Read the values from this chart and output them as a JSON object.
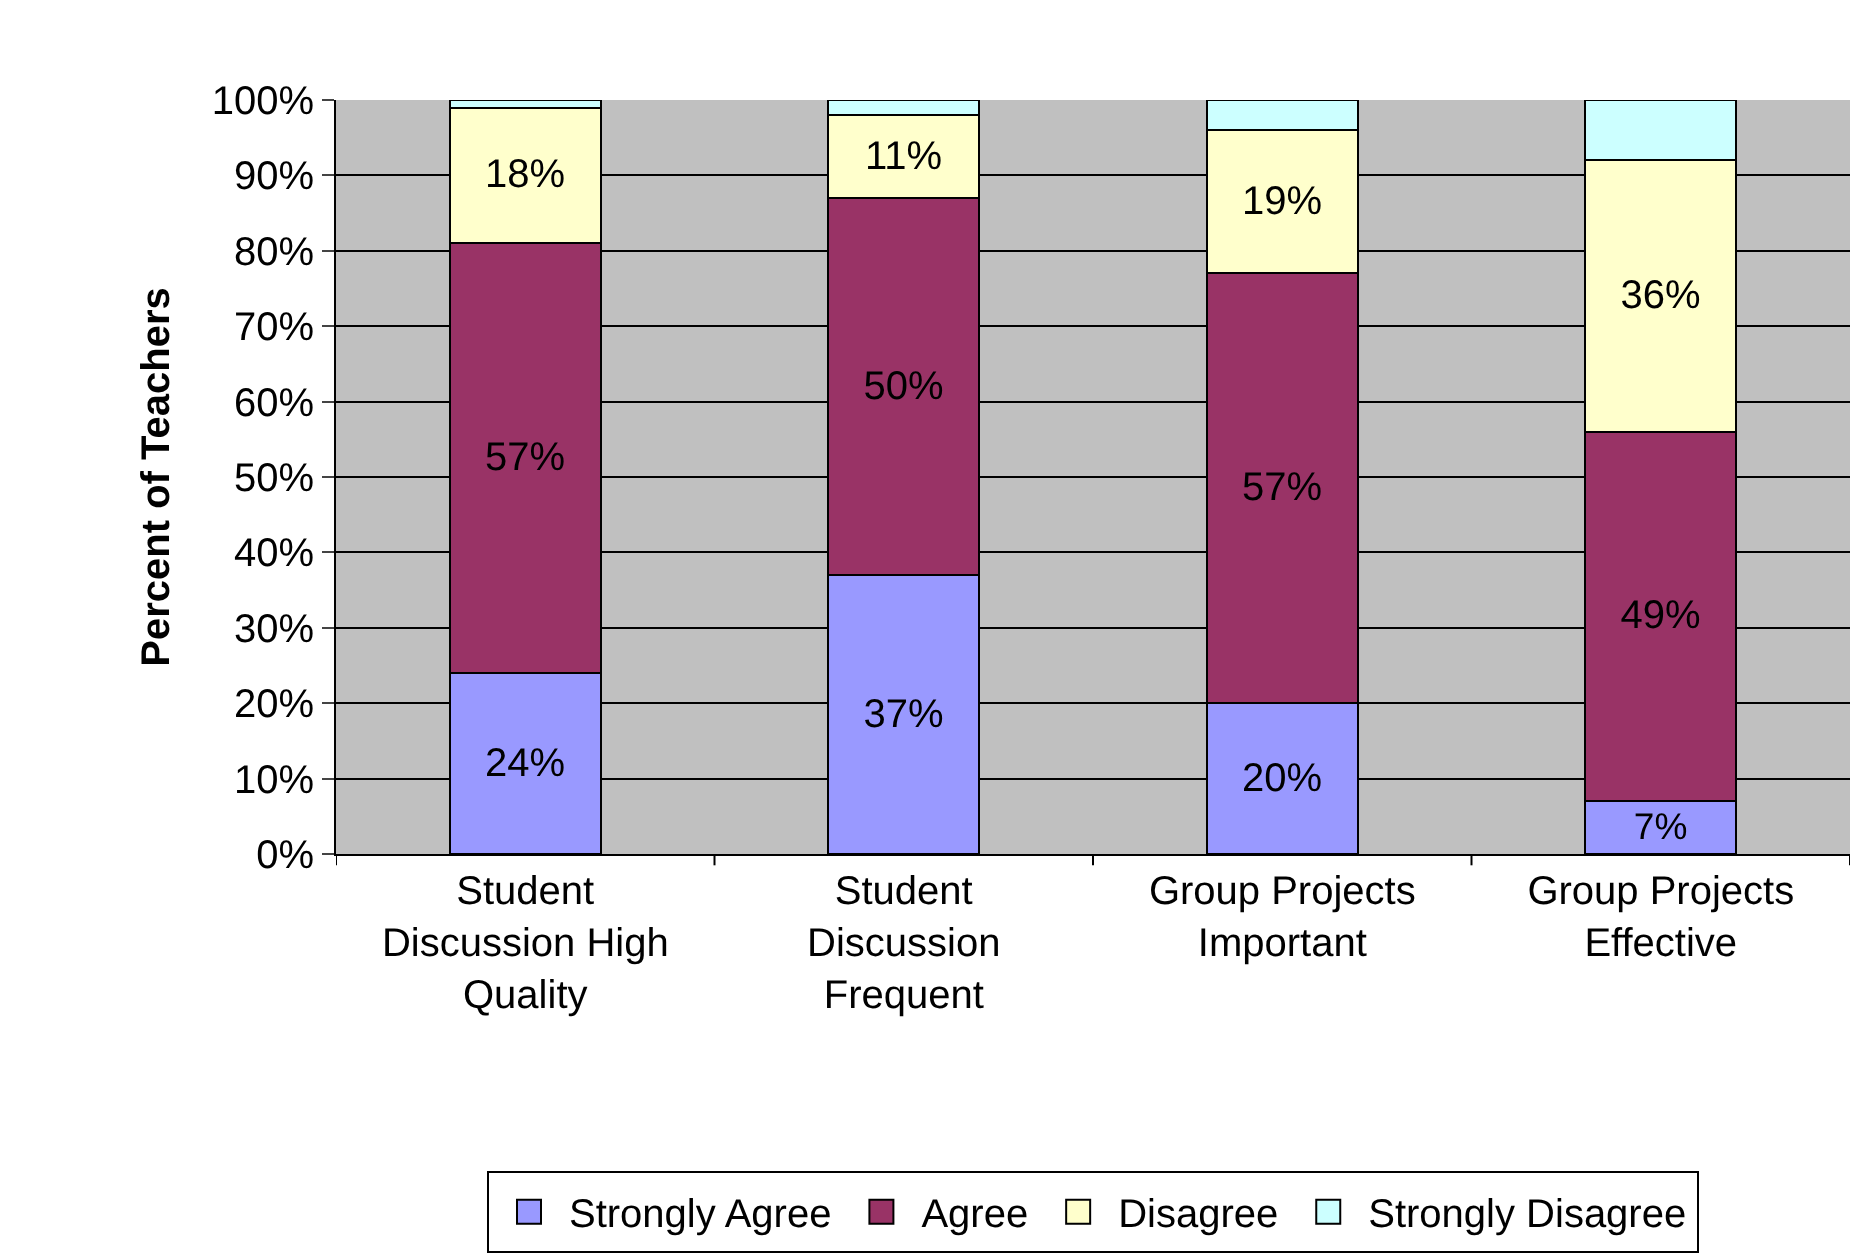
{
  "chart_data": {
    "type": "bar",
    "stacked": true,
    "ylabel": "Percent of Teachers",
    "categories": [
      "Student Discussion High Quality",
      "Student Discussion Frequent",
      "Group Projects Important",
      "Group Projects Effective"
    ],
    "series": [
      {
        "name": "Strongly Agree",
        "color": "#9999ff",
        "values": [
          24,
          37,
          20,
          7
        ],
        "value_labels": [
          "24%",
          "37%",
          "20%",
          "7%"
        ]
      },
      {
        "name": "Agree",
        "color": "#993366",
        "values": [
          57,
          50,
          57,
          49
        ],
        "value_labels": [
          "57%",
          "50%",
          "57%",
          "49%"
        ]
      },
      {
        "name": "Disagree",
        "color": "#ffffcc",
        "values": [
          18,
          11,
          19,
          36
        ],
        "value_labels": [
          "18%",
          "11%",
          "19%",
          "36%"
        ]
      },
      {
        "name": "Strongly Disagree",
        "color": "#ccffff",
        "values": [
          1,
          2,
          4,
          8
        ]
      }
    ],
    "ylim": [
      0,
      100
    ],
    "yticks": [
      {
        "value": 0,
        "label": "0%"
      },
      {
        "value": 10,
        "label": "10%"
      },
      {
        "value": 20,
        "label": "20%"
      },
      {
        "value": 30,
        "label": "30%"
      },
      {
        "value": 40,
        "label": "40%"
      },
      {
        "value": 50,
        "label": "50%"
      },
      {
        "value": 60,
        "label": "60%"
      },
      {
        "value": 70,
        "label": "70%"
      },
      {
        "value": 80,
        "label": "80%"
      },
      {
        "value": 90,
        "label": "90%"
      },
      {
        "value": 100,
        "label": "100%"
      }
    ],
    "grid": "y",
    "legend": "bottom"
  }
}
